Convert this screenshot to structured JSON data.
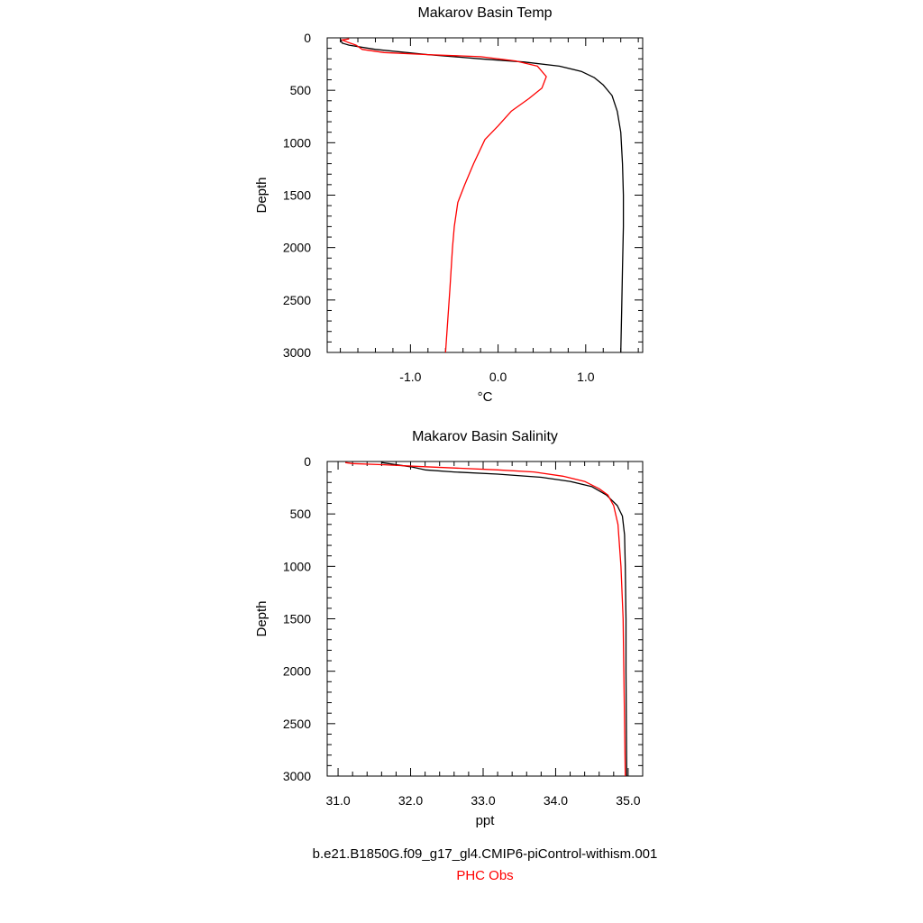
{
  "chart_data": [
    {
      "type": "line",
      "title": "Makarov Basin Temp",
      "xlabel": "°C",
      "ylabel": "Depth",
      "xlim": [
        -1.95,
        1.65
      ],
      "ylim": [
        3000,
        0
      ],
      "x_ticks": [
        -1.0,
        0.0,
        1.0
      ],
      "x_tick_labels": [
        "-1.0",
        "0.0",
        "1.0"
      ],
      "y_ticks": [
        0,
        500,
        1000,
        1500,
        2000,
        2500,
        3000
      ],
      "y_tick_labels": [
        "0",
        "500",
        "1000",
        "1500",
        "2000",
        "2500",
        "3000"
      ],
      "grid": false,
      "series": [
        {
          "color": "#000000",
          "points": [
            [
              -1.8,
              10
            ],
            [
              -1.78,
              50
            ],
            [
              -1.7,
              70
            ],
            [
              -1.4,
              110
            ],
            [
              -0.8,
              160
            ],
            [
              -0.2,
              200
            ],
            [
              0.3,
              230
            ],
            [
              0.7,
              270
            ],
            [
              0.95,
              320
            ],
            [
              1.1,
              380
            ],
            [
              1.2,
              450
            ],
            [
              1.3,
              550
            ],
            [
              1.36,
              700
            ],
            [
              1.4,
              900
            ],
            [
              1.42,
              1200
            ],
            [
              1.43,
              1500
            ],
            [
              1.43,
              1800
            ],
            [
              1.42,
              2200
            ],
            [
              1.41,
              2600
            ],
            [
              1.4,
              3000
            ]
          ]
        },
        {
          "color": "#ff0000",
          "points": [
            [
              -1.7,
              10
            ],
            [
              -1.78,
              20
            ],
            [
              -1.72,
              40
            ],
            [
              -1.62,
              70
            ],
            [
              -1.55,
              110
            ],
            [
              -1.3,
              140
            ],
            [
              -0.8,
              160
            ],
            [
              -0.2,
              180
            ],
            [
              0.2,
              220
            ],
            [
              0.45,
              270
            ],
            [
              0.55,
              370
            ],
            [
              0.5,
              480
            ],
            [
              0.35,
              580
            ],
            [
              0.15,
              700
            ],
            [
              0.0,
              840
            ],
            [
              -0.15,
              970
            ],
            [
              -0.28,
              1200
            ],
            [
              -0.38,
              1400
            ],
            [
              -0.46,
              1570
            ],
            [
              -0.5,
              1800
            ],
            [
              -0.52,
              2000
            ],
            [
              -0.55,
              2400
            ],
            [
              -0.6,
              3000
            ]
          ]
        }
      ]
    },
    {
      "type": "line",
      "title": "Makarov Basin Salinity",
      "xlabel": "ppt",
      "ylabel": "Depth",
      "xlim": [
        30.85,
        35.2
      ],
      "ylim": [
        3000,
        0
      ],
      "x_ticks": [
        31.0,
        32.0,
        33.0,
        34.0,
        35.0
      ],
      "x_tick_labels": [
        "31.0",
        "32.0",
        "33.0",
        "34.0",
        "35.0"
      ],
      "y_ticks": [
        0,
        500,
        1000,
        1500,
        2000,
        2500,
        3000
      ],
      "y_tick_labels": [
        "0",
        "500",
        "1000",
        "1500",
        "2000",
        "2500",
        "3000"
      ],
      "grid": false,
      "series": [
        {
          "color": "#000000",
          "points": [
            [
              31.6,
              10
            ],
            [
              31.9,
              40
            ],
            [
              32.0,
              50
            ],
            [
              32.2,
              80
            ],
            [
              32.6,
              100
            ],
            [
              33.2,
              120
            ],
            [
              33.8,
              150
            ],
            [
              34.2,
              190
            ],
            [
              34.5,
              240
            ],
            [
              34.7,
              320
            ],
            [
              34.85,
              420
            ],
            [
              34.92,
              520
            ],
            [
              34.95,
              700
            ],
            [
              34.96,
              1000
            ],
            [
              34.97,
              1500
            ],
            [
              34.97,
              2000
            ],
            [
              34.98,
              3000
            ]
          ]
        },
        {
          "color": "#ff0000",
          "points": [
            [
              31.1,
              10
            ],
            [
              31.2,
              20
            ],
            [
              31.6,
              30
            ],
            [
              32.2,
              50
            ],
            [
              33.2,
              80
            ],
            [
              33.7,
              100
            ],
            [
              34.1,
              140
            ],
            [
              34.4,
              190
            ],
            [
              34.6,
              260
            ],
            [
              34.72,
              320
            ],
            [
              34.8,
              420
            ],
            [
              34.86,
              600
            ],
            [
              34.9,
              1000
            ],
            [
              34.93,
              1500
            ],
            [
              34.94,
              2000
            ],
            [
              34.96,
              3000
            ]
          ]
        }
      ]
    }
  ],
  "footer": {
    "case_name": "b.e21.B1850G.f09_g17_gl4.CMIP6-piControl-withism.001",
    "obs_name": "PHC Obs",
    "case_color": "#000000",
    "obs_color": "#ff0000"
  }
}
